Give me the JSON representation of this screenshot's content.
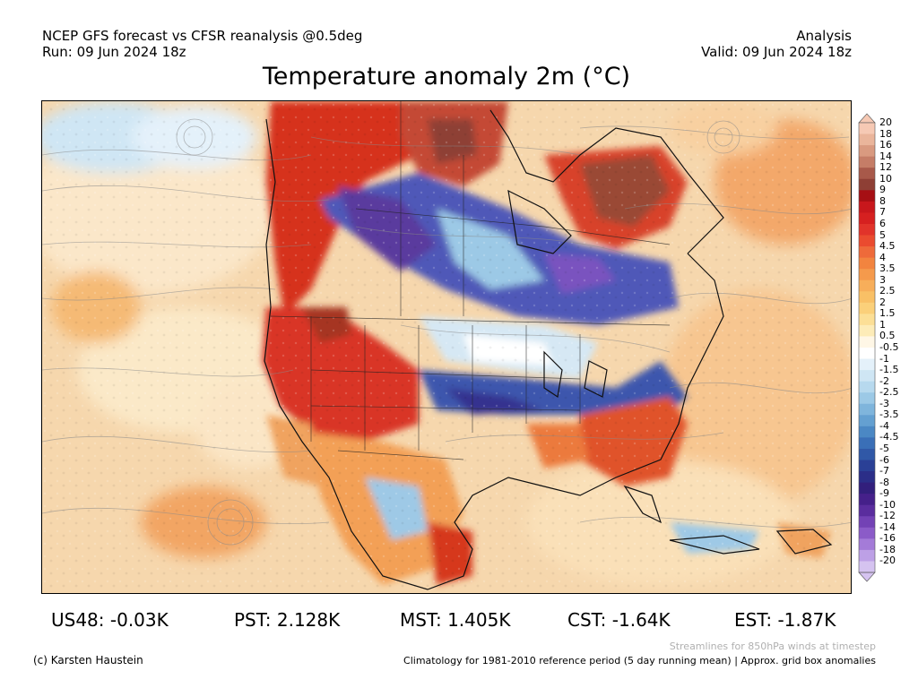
{
  "header": {
    "line1_left": "NCEP GFS forecast vs CFSR reanalysis @0.5deg",
    "line2_left": "Run: 09 Jun 2024 18z",
    "line1_right": "Analysis",
    "line2_right": "Valid: 09 Jun 2024 18z"
  },
  "title": "Temperature anomaly 2m (°C)",
  "map": {
    "region": "North America",
    "variable": "2m temperature anomaly",
    "overlay": "850hPa streamlines",
    "colors": {
      "ocean_warm": "#f5d6a8",
      "ocean_mild": "#fbe9c8",
      "warm_land": "#d73027",
      "hot_land": "#8c2d04",
      "cool_band": "#4a56b0",
      "deep_cool": "#5a3a9e",
      "light_cool": "#9ec9e6",
      "neutral": "#ffffff"
    }
  },
  "colorbar": {
    "labels": [
      "20",
      "18",
      "16",
      "14",
      "12",
      "10",
      "9",
      "8",
      "7",
      "6",
      "5",
      "4.5",
      "4",
      "3.5",
      "3",
      "2.5",
      "2",
      "1.5",
      "1",
      "0.5",
      "-0.5",
      "-1",
      "-1.5",
      "-2",
      "-2.5",
      "-3",
      "-3.5",
      "-4",
      "-4.5",
      "-5",
      "-6",
      "-7",
      "-8",
      "-9",
      "-10",
      "-12",
      "-14",
      "-16",
      "-18",
      "-20"
    ],
    "colors": [
      "#f6c9b4",
      "#eab59b",
      "#d99a80",
      "#c57d67",
      "#a8594a",
      "#8e3f35",
      "#a60f14",
      "#c8171c",
      "#d62020",
      "#e1332a",
      "#ea4b2f",
      "#ee6a3a",
      "#f2843f",
      "#f59a4c",
      "#f7ae5a",
      "#f9c066",
      "#fbd07a",
      "#fcdf96",
      "#fdecb8",
      "#fff7e6",
      "#ffffff",
      "#e4f1fa",
      "#cfe6f4",
      "#b7d9ee",
      "#9cc9e6",
      "#7fb5dc",
      "#64a0d1",
      "#4b88c4",
      "#3a6fb7",
      "#3058a7",
      "#2a4096",
      "#2b2e88",
      "#321f7c",
      "#45208a",
      "#5a2d9e",
      "#7342b5",
      "#8b5bc8",
      "#a47bd8",
      "#bda0e6",
      "#d5c3f0"
    ]
  },
  "stats": [
    {
      "label": "US48: -0.03K"
    },
    {
      "label": "PST: 2.128K"
    },
    {
      "label": "MST: 1.405K"
    },
    {
      "label": "CST: -1.64K"
    },
    {
      "label": "EST: -1.87K"
    }
  ],
  "footer": {
    "credit": "(c) Karsten Haustein",
    "streamline_note": "Streamlines for 850hPa winds at timestep",
    "climatology_note": "Climatology for 1981-2010 reference period (5 day running mean) | Approx. grid box anomalies"
  }
}
